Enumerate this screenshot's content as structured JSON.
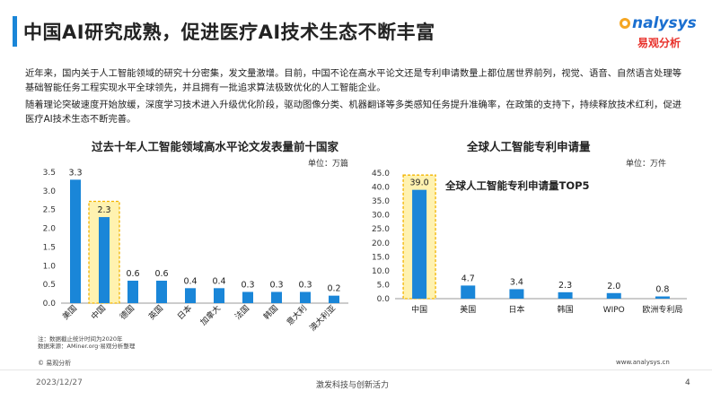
{
  "header": {
    "title": "中国AI研究成熟，促进医疗AI技术生态不断丰富",
    "logo_text": "nalysys",
    "logo_cn": "易观分析"
  },
  "intro": {
    "p1": "近年来，国内关于人工智能领域的研究十分密集，发文量激增。目前，中国不论在高水平论文还是专利申请数量上都位居世界前列，视觉、语音、自然语言处理等基础智能任务工程实现水平全球领先，并且拥有一批追求算法极致优化的人工智能企业。",
    "p2": "随着理论突破速度开始放缓，深度学习技术进入升级优化阶段，驱动图像分类、机器翻译等多类感知任务提升准确率，在政策的支持下，持续释放技术红利，促进医疗AI技术生态不断完善。"
  },
  "chart_data": [
    {
      "type": "bar",
      "title": "过去十年人工智能领域高水平论文发表量前十国家",
      "unit": "单位：万篇",
      "categories": [
        "美国",
        "中国",
        "德国",
        "英国",
        "日本",
        "加拿大",
        "法国",
        "韩国",
        "意大利",
        "澳大利亚"
      ],
      "values": [
        3.3,
        2.3,
        0.6,
        0.6,
        0.4,
        0.4,
        0.3,
        0.3,
        0.3,
        0.2
      ],
      "value_labels": [
        "3.3",
        "2.3",
        "0.6",
        "0.6",
        "0.4",
        "0.4",
        "0.3",
        "0.3",
        "0.3",
        "0.2"
      ],
      "highlight_index": 1,
      "ylim": [
        0,
        3.5
      ],
      "yticks": [
        "0.0",
        "0.5",
        "1.0",
        "1.5",
        "2.0",
        "2.5",
        "3.0",
        "3.5"
      ],
      "ytick_values": [
        0,
        0.5,
        1.0,
        1.5,
        2.0,
        2.5,
        3.0,
        3.5
      ],
      "grid": false,
      "bar_color": "#1a86d8",
      "highlight_color": "#fff2b0"
    },
    {
      "type": "bar",
      "title": "全球人工智能专利申请量",
      "inner_title": "全球人工智能专利申请量TOP5",
      "unit": "单位：万件",
      "categories": [
        "中国",
        "美国",
        "日本",
        "韩国",
        "WIPO",
        "欧洲专利局"
      ],
      "values": [
        39.0,
        4.7,
        3.4,
        2.3,
        2.0,
        0.8
      ],
      "value_labels": [
        "39.0",
        "4.7",
        "3.4",
        "2.3",
        "2.0",
        "0.8"
      ],
      "highlight_index": 0,
      "ylim": [
        0,
        45
      ],
      "yticks": [
        "0.0",
        "5.0",
        "10.0",
        "15.0",
        "20.0",
        "25.0",
        "30.0",
        "35.0",
        "40.0",
        "45.0"
      ],
      "ytick_values": [
        0,
        5,
        10,
        15,
        20,
        25,
        30,
        35,
        40,
        45
      ],
      "grid": false,
      "bar_color": "#1a86d8",
      "highlight_color": "#fff2b0"
    }
  ],
  "notes": {
    "n1": "注：数据截止统计时间为2020年",
    "n2": "数据来源：AMiner.org·易观分析整理"
  },
  "footer": {
    "copyright": "© 易观分析",
    "website": "www.analysys.cn",
    "date": "2023/12/27",
    "slogan": "激发科技与创新活力",
    "page": "4"
  }
}
